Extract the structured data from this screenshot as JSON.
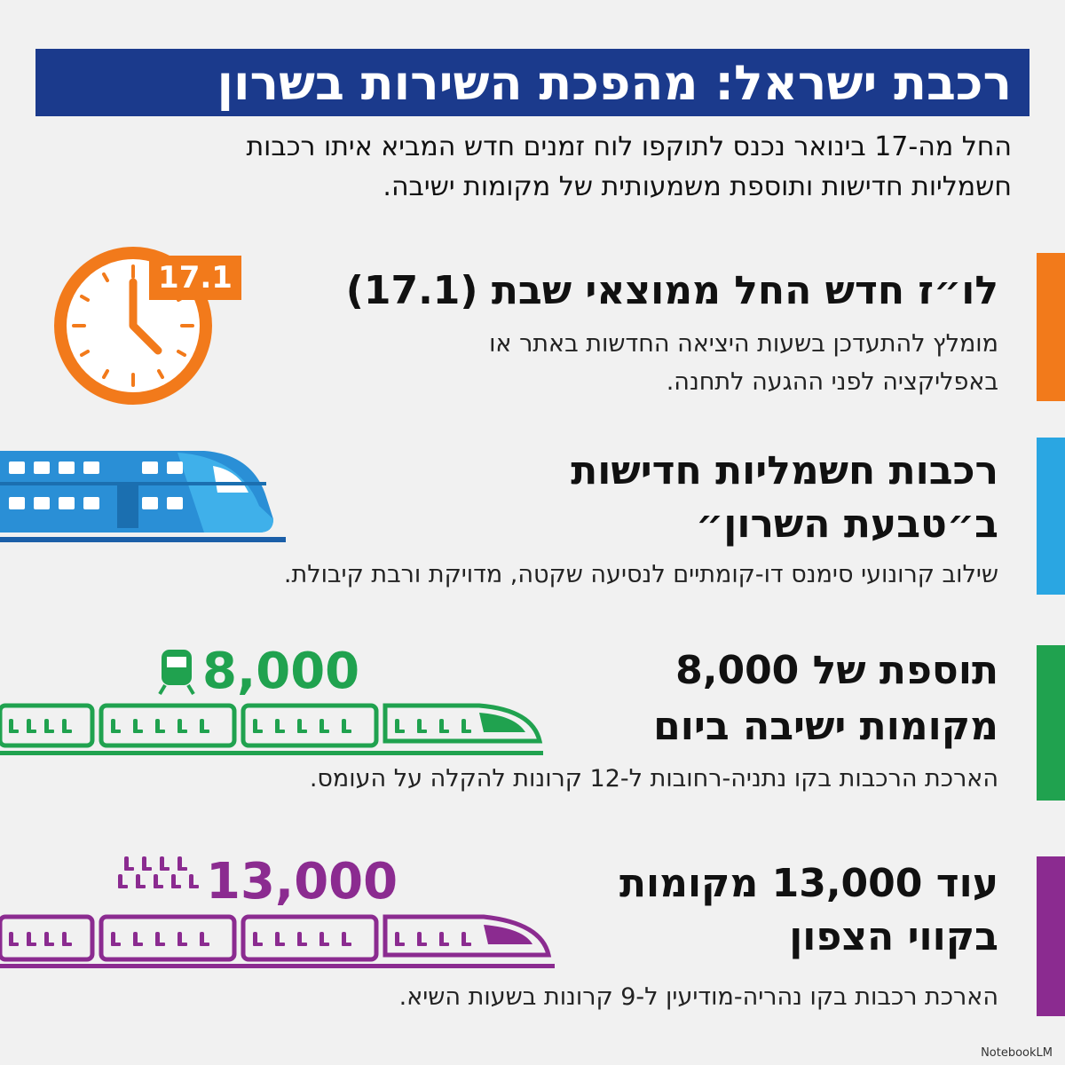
{
  "header": {
    "title": "רכבת ישראל: מהפכת השירות בשרון",
    "intro": [
      "החל מה-17 בינואר נכנס לתוקפו לוח זמנים חדש המביא איתו רכבות",
      "חשמליות חדישות ותוספת משמעותית של מקומות ישיבה."
    ]
  },
  "sections": [
    {
      "badge": "17.1",
      "heading": [
        "לו״ז חדש החל ממוצאי שבת (17.1)"
      ],
      "body": [
        "מומלץ להתעדכן בשעות היציאה החדשות באתר או",
        "באפליקציה לפני ההגעה לתחנה."
      ]
    },
    {
      "heading": [
        "רכבות חשמליות חדישות",
        "ב״טבעת השרון״"
      ],
      "body": [
        "שילוב קרונועי סימנס דו-קומתיים לנסיעה שקטה, מדויקת ורבת קיבולת."
      ]
    },
    {
      "badge": "8,000",
      "heading": [
        "תוספת של 8,000",
        "מקומות ישיבה ביום"
      ],
      "body": [
        "הארכת הרכבות בקו נתניה-רחובות ל-12 קרונות להקלה על העומס."
      ]
    },
    {
      "badge": "13,000",
      "heading": [
        "עוד 13,000 מקומות",
        "בקווי הצפון"
      ],
      "body": [
        "הארכת רכבות בקו נהריה-מודיעין ל-9 קרונות בשעות השיא."
      ]
    }
  ],
  "footer": {
    "brand": "NotebookLM"
  }
}
